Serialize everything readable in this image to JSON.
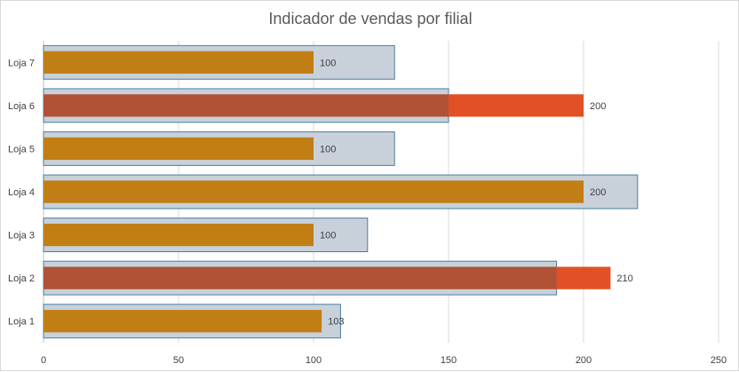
{
  "chart_data": {
    "type": "bar",
    "orientation": "horizontal",
    "title": "Indicador de vendas por filial",
    "xlabel": "",
    "ylabel": "",
    "categories": [
      "Loja 1",
      "Loja 2",
      "Loja 3",
      "Loja 4",
      "Loja 5",
      "Loja 6",
      "Loja 7"
    ],
    "xlim": [
      0,
      250
    ],
    "xticks": [
      0,
      50,
      100,
      150,
      200,
      250
    ],
    "grid": true,
    "legend": "none",
    "series": [
      {
        "role": "target",
        "values": [
          110,
          190,
          120,
          220,
          130,
          150,
          130
        ]
      },
      {
        "role": "sales",
        "values": [
          103,
          210,
          100,
          200,
          100,
          200,
          100
        ],
        "labels": [
          "103",
          "210",
          "100",
          "200",
          "100",
          "200",
          "100"
        ]
      }
    ],
    "colors": {
      "target_fill": "#c8d1da",
      "target_border": "#4a7ea0",
      "sales_within_target": "#c07e15",
      "sales_over_target": "#e15125",
      "sales_overlap": "#b05235",
      "gridline": "#d9d9d9"
    }
  }
}
